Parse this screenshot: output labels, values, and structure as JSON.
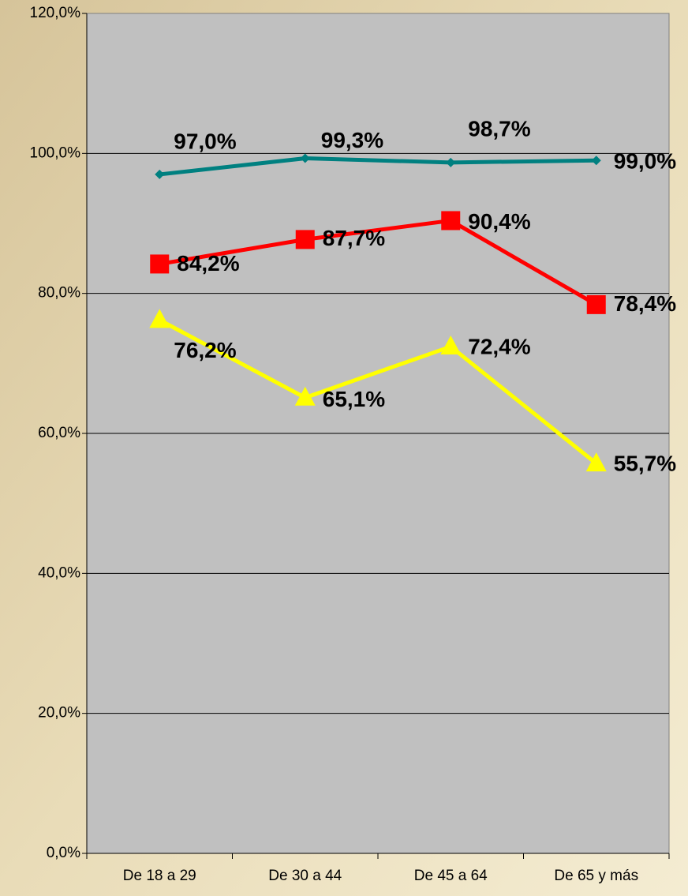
{
  "chart_data": {
    "type": "line",
    "categories": [
      "De 18 a 29",
      "De 30 a 44",
      "De 45 a 64",
      "De 65 y más"
    ],
    "series": [
      {
        "color": "#008080",
        "marker": "diamond",
        "values": [
          97.0,
          99.3,
          98.7,
          99.0
        ],
        "value_labels": [
          "97,0%",
          "99,3%",
          "98,7%",
          "99,0%"
        ]
      },
      {
        "color": "#ff0000",
        "marker": "square",
        "values": [
          84.2,
          87.7,
          90.4,
          78.4
        ],
        "value_labels": [
          "84,2%",
          "87,7%",
          "90,4%",
          "78,4%"
        ]
      },
      {
        "color": "#ffff00",
        "marker": "triangle",
        "values": [
          76.2,
          65.1,
          72.4,
          55.7
        ],
        "value_labels": [
          "76,2%",
          "65,1%",
          "72,4%",
          "55,7%"
        ]
      }
    ],
    "ylim": [
      0,
      120
    ],
    "yticks": [
      {
        "value": 0,
        "label": "0,0%"
      },
      {
        "value": 20,
        "label": "20,0%"
      },
      {
        "value": 40,
        "label": "40,0%"
      },
      {
        "value": 60,
        "label": "60,0%"
      },
      {
        "value": 80,
        "label": "80,0%"
      },
      {
        "value": 100,
        "label": "100,0%"
      },
      {
        "value": 120,
        "label": "120,0%"
      }
    ],
    "grid": true
  }
}
